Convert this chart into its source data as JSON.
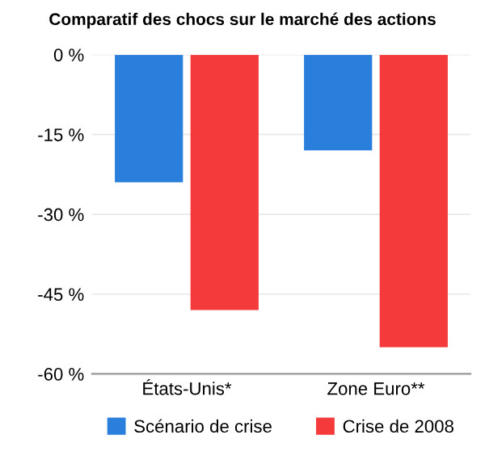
{
  "chart_data": {
    "type": "bar",
    "title": "Comparatif des chocs sur le marché des actions",
    "categories": [
      "États-Unis*",
      "Zone Euro**"
    ],
    "series": [
      {
        "name": "Scénario de crise",
        "color": "#2a7fdc",
        "values": [
          -24,
          -18
        ]
      },
      {
        "name": "Crise de 2008",
        "color": "#f43a3a",
        "values": [
          -48,
          -55
        ]
      }
    ],
    "ylim": [
      -60,
      0
    ],
    "yticks": [
      {
        "value": 0,
        "label": "0 %"
      },
      {
        "value": -15,
        "label": "-15 %"
      },
      {
        "value": -30,
        "label": "-30 %"
      },
      {
        "value": -45,
        "label": "-45 %"
      },
      {
        "value": -60,
        "label": "-60 %"
      }
    ],
    "grid": "y",
    "legend": "bottom"
  }
}
